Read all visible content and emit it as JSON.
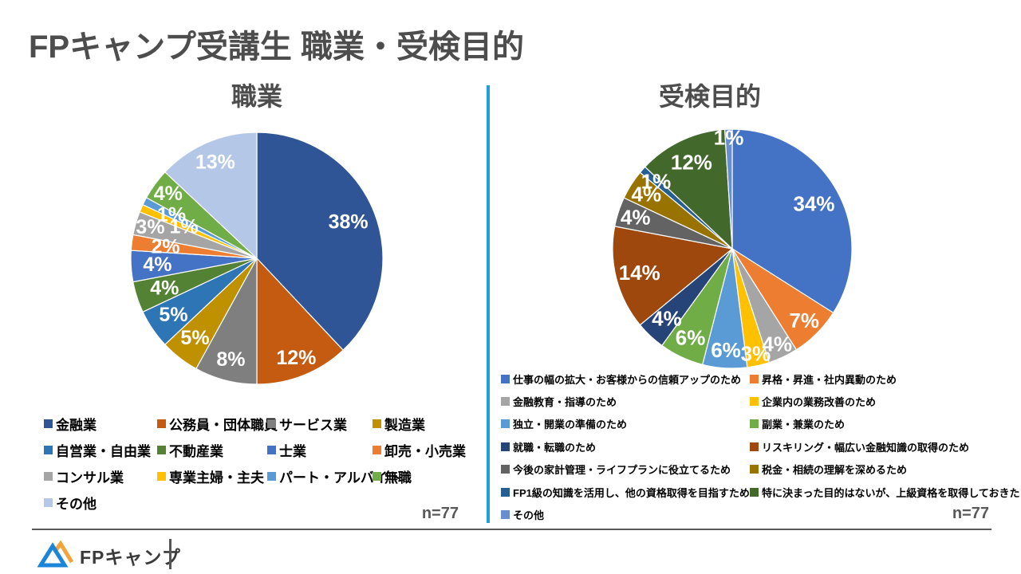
{
  "page": {
    "title": "FPキャンプ受講生 職業・受検目的",
    "colors": {
      "divider": "#1E9FDB",
      "title_text": "#4D4D4D"
    },
    "footer": {
      "logo_text": "FPキャンプ"
    }
  },
  "chart_data": [
    {
      "type": "pie",
      "title": "職業",
      "sample_label": "n=77",
      "legend_position": "bottom",
      "legend_columns": 4,
      "start_angle_deg": 0,
      "direction": "clockwise",
      "slices": [
        {
          "label": "金融業",
          "value": 38,
          "color": "#2F5597",
          "label_radius": 0.78
        },
        {
          "label": "公務員・団体職員",
          "value": 12,
          "color": "#C55A11",
          "label_radius": 0.85
        },
        {
          "label": "サービス業",
          "value": 8,
          "color": "#7F7F7F",
          "label_radius": 0.83
        },
        {
          "label": "製造業",
          "value": 5,
          "color": "#BF9000",
          "label_radius": 0.8
        },
        {
          "label": "自営業・自由業",
          "value": 5,
          "color": "#2E75B6",
          "label_radius": 0.8
        },
        {
          "label": "不動産業",
          "value": 4,
          "color": "#548235",
          "label_radius": 0.77
        },
        {
          "label": "士業",
          "value": 4,
          "color": "#4472C4",
          "label_radius": 0.79
        },
        {
          "label": "卸売・小売業",
          "value": 2,
          "color": "#ED7D31",
          "label_radius": 0.73
        },
        {
          "label": "コンサル業",
          "value": 3,
          "color": "#A5A5A5",
          "label_radius": 0.88
        },
        {
          "label": "専業主婦・主夫",
          "value": 1,
          "color": "#FFC000",
          "label_radius": 0.63
        },
        {
          "label": "パート・アルバイト",
          "value": 1,
          "color": "#5B9BD5",
          "label_radius": 0.76
        },
        {
          "label": "無職",
          "value": 4,
          "color": "#70AD47",
          "label_radius": 0.87
        },
        {
          "label": "その他",
          "value": 13,
          "color": "#B4C7E7",
          "label_radius": 0.83
        }
      ]
    },
    {
      "type": "pie",
      "title": "受検目的",
      "sample_label": "n=77",
      "legend_position": "bottom",
      "legend_columns": 2,
      "start_angle_deg": 0,
      "direction": "clockwise",
      "slices": [
        {
          "label": "仕事の幅の拡大・お客様からの信頼アップのため",
          "value": 34,
          "color": "#4472C4",
          "label_radius": 0.78
        },
        {
          "label": "昇格・昇進・社内異動のため",
          "value": 7,
          "color": "#ED7D31",
          "label_radius": 0.85
        },
        {
          "label": "金融教育・指導のため",
          "value": 4,
          "color": "#A5A5A5",
          "label_radius": 0.88
        },
        {
          "label": "企業内の業務改善のため",
          "value": 3,
          "color": "#FFC000",
          "label_radius": 0.9
        },
        {
          "label": "独立・開業の準備のため",
          "value": 6,
          "color": "#5B9BD5",
          "label_radius": 0.85
        },
        {
          "label": "副業・兼業のため",
          "value": 6,
          "color": "#70AD47",
          "label_radius": 0.82
        },
        {
          "label": "就職・転職のため",
          "value": 4,
          "color": "#264478",
          "label_radius": 0.8
        },
        {
          "label": "リスキリング・幅広い金融知識の取得のため",
          "value": 14,
          "color": "#9E480E",
          "label_radius": 0.8
        },
        {
          "label": "今後の家計管理・ライフプランに役立てるため",
          "value": 4,
          "color": "#636363",
          "label_radius": 0.85
        },
        {
          "label": "税金・相続の理解を深めるため",
          "value": 4,
          "color": "#997300",
          "label_radius": 0.85
        },
        {
          "label": "FP1級の知識を活用し、他の資格取得を目指すため",
          "value": 1,
          "color": "#255E91",
          "label_radius": 0.85
        },
        {
          "label": "特に決まった目的はないが、上級資格を取得しておきたいため",
          "value": 12,
          "color": "#43682B",
          "label_radius": 0.8
        },
        {
          "label": "その他",
          "value": 1,
          "color": "#698ED0",
          "label_radius": 0.93
        }
      ]
    }
  ]
}
